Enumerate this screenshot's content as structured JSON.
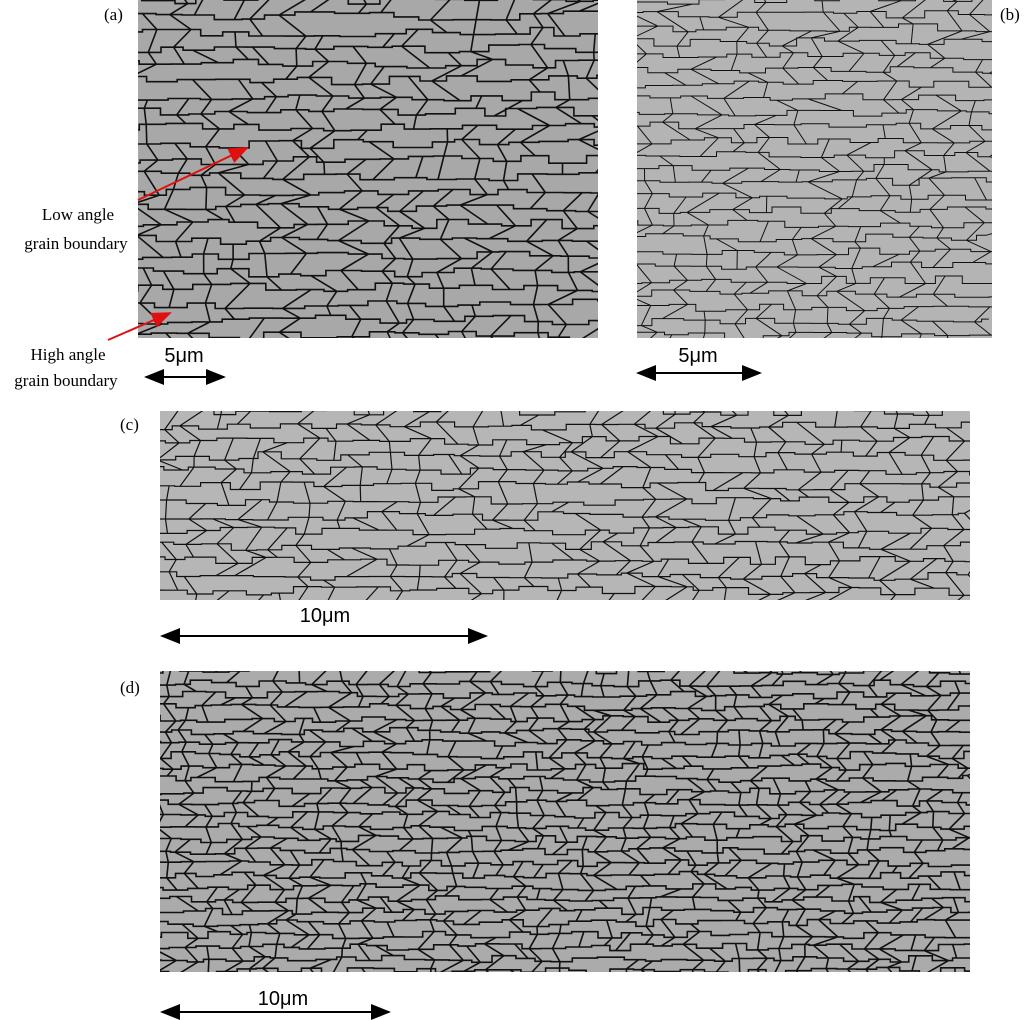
{
  "panels": [
    {
      "label": "(a)",
      "scale_bar": "5μm"
    },
    {
      "label": "(b)",
      "scale_bar": "5μm"
    },
    {
      "label": "(c)",
      "scale_bar": "10μm"
    },
    {
      "label": "(d)",
      "scale_bar": "10μm"
    }
  ],
  "annotations": [
    {
      "lines": [
        "Low angle",
        "grain boundary"
      ]
    },
    {
      "lines": [
        "High angle",
        "grain boundary"
      ]
    }
  ]
}
